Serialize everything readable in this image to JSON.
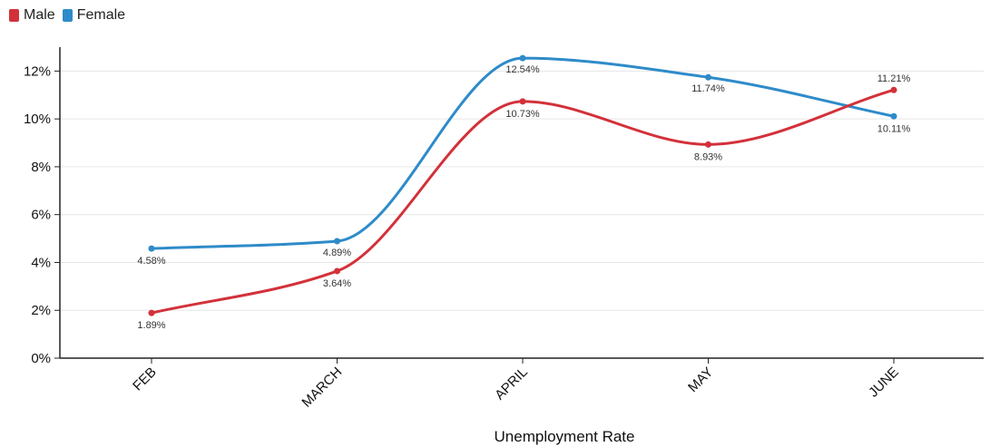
{
  "legend": {
    "items": [
      {
        "label": "Male",
        "color": "#d3313a"
      },
      {
        "label": "Female",
        "color": "#2e8bc9"
      }
    ]
  },
  "chart_data": {
    "type": "line",
    "categories": [
      "FEB",
      "MARCH",
      "APRIL",
      "MAY",
      "JUNE"
    ],
    "series": [
      {
        "name": "Male",
        "color": "#d3313a",
        "values": [
          1.89,
          3.64,
          10.73,
          8.93,
          11.21
        ],
        "labels": [
          "1.89%",
          "3.64%",
          "10.73%",
          "8.93%",
          "11.21%"
        ]
      },
      {
        "name": "Female",
        "color": "#2e8bc9",
        "values": [
          4.58,
          4.89,
          12.54,
          11.74,
          10.11
        ],
        "labels": [
          "4.58%",
          "4.89%",
          "12.54%",
          "11.74%",
          "10.11%"
        ]
      }
    ],
    "yticks": [
      "0%",
      "2%",
      "4%",
      "6%",
      "8%",
      "10%",
      "12%"
    ],
    "ylim": [
      0,
      13
    ],
    "xlabel": "Unemployment Rate",
    "ylabel": "",
    "grid": true,
    "legend_position": "top-left",
    "smooth": true
  }
}
